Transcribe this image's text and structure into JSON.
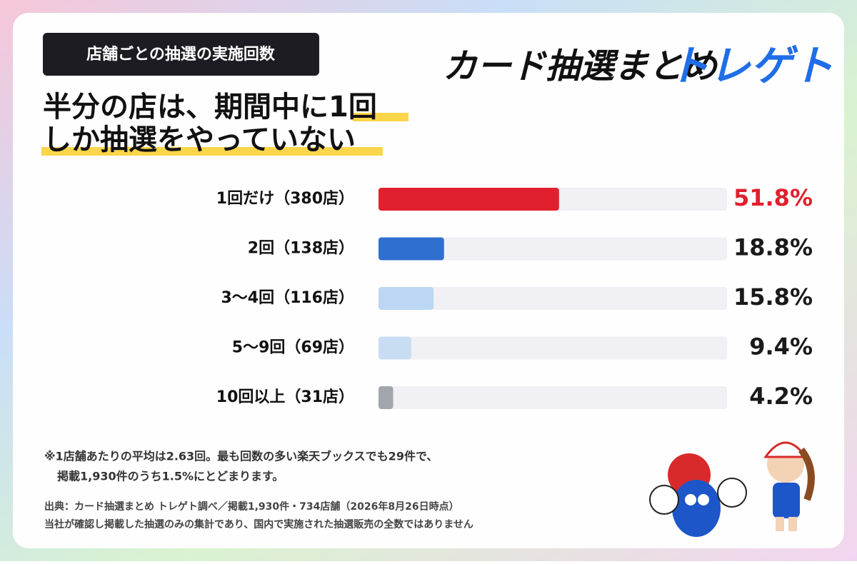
{
  "badge": "店舗ごとの抽選の実施回数",
  "headline": [
    "半分の店は、期間中に1回",
    "しか抽選をやっていない"
  ],
  "logo": {
    "primary": "カード抽選まとめ",
    "accent": "トレゲト"
  },
  "chart_data": {
    "type": "bar",
    "orientation": "horizontal",
    "categories": [
      "1回だけ（380店）",
      "2回（138店）",
      "3〜4回（116店）",
      "5〜9回（69店）",
      "10回以上（31店）"
    ],
    "values": [
      51.8,
      18.8,
      15.8,
      9.4,
      4.2
    ],
    "value_labels": [
      "51.8%",
      "18.8%",
      "15.8%",
      "9.4%",
      "4.2%"
    ],
    "colors": [
      "#e0202e",
      "#2f6fd0",
      "#bcd6f3",
      "#c9ddf2",
      "#a2a5ac"
    ],
    "value_label_colors": [
      "#e0202e",
      "#1a1a1a",
      "#1a1a1a",
      "#1a1a1a",
      "#1a1a1a"
    ],
    "xlim": [
      0,
      100
    ]
  },
  "notes": [
    "※1店舗あたりの平均は2.63回。最も回数の多い楽天ブックスでも29件で、",
    "掲載1,930件のうち1.5%にとどまります。"
  ],
  "source": [
    "出典：カード抽選まとめ トレゲト調べ／掲載1,930件・734店舗（2026年8月26日時点）",
    "当社が確認し掲載した抽選のみの集計であり、国内で実施された抽選販売の全数ではありません"
  ]
}
